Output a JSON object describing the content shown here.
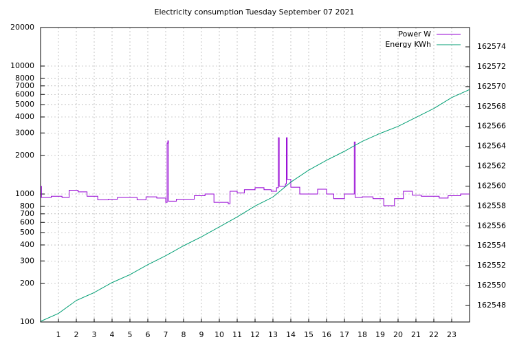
{
  "chart_data": {
    "type": "line",
    "title": "Electricity consumption Tuesday September 07 2021",
    "xlim": [
      0,
      24
    ],
    "xticks": [
      1,
      2,
      3,
      4,
      5,
      6,
      7,
      8,
      9,
      10,
      11,
      12,
      13,
      14,
      15,
      16,
      17,
      18,
      19,
      20,
      21,
      22,
      23
    ],
    "ylim": [
      100,
      20000
    ],
    "yscale": "log",
    "yticks": [
      100,
      200,
      300,
      400,
      500,
      600,
      700,
      800,
      1000,
      2000,
      3000,
      4000,
      5000,
      6000,
      7000,
      8000,
      10000,
      20000
    ],
    "y2lim": [
      162546.34,
      162575.94
    ],
    "y2ticks": [
      162548,
      162550,
      162552,
      162554,
      162556,
      162558,
      162560,
      162562,
      162564,
      162566,
      162568,
      162570,
      162572,
      162574
    ],
    "grid": true,
    "legend": "top-right",
    "series": [
      {
        "name": "Power W",
        "color": "#9400d3",
        "style": "steps",
        "x": [
          0,
          0.05,
          0.6,
          1.2,
          1.6,
          2.1,
          2.6,
          3.2,
          3.8,
          4.3,
          5.4,
          5.9,
          6.5,
          7.0,
          7.08,
          7.12,
          7.15,
          7.2,
          7.6,
          8.6,
          9.2,
          9.7,
          10.5,
          10.6,
          11,
          11.4,
          12,
          12.5,
          12.9,
          13.2,
          13.3,
          13.35,
          13.7,
          13.75,
          13.8,
          14.0,
          14.5,
          15.5,
          16,
          16.4,
          17,
          17.55,
          17.6,
          18,
          18.6,
          19.2,
          19.8,
          20.3,
          20.8,
          21.3,
          22.3,
          22.8,
          23.5
        ],
        "values": [
          1150,
          940,
          960,
          940,
          1070,
          1040,
          960,
          900,
          910,
          940,
          900,
          950,
          930,
          860,
          2500,
          2600,
          880,
          880,
          910,
          970,
          1000,
          860,
          840,
          1050,
          1020,
          1080,
          1120,
          1080,
          1050,
          1120,
          2750,
          1150,
          1200,
          2750,
          1300,
          1130,
          1000,
          1090,
          1000,
          920,
          1000,
          2550,
          940,
          950,
          920,
          810,
          920,
          1050,
          980,
          960,
          930,
          970,
          1000
        ]
      },
      {
        "name": "Energy KWh",
        "color": "#009e73",
        "axis": "y2",
        "x": [
          0,
          1,
          2,
          3,
          4,
          5,
          6,
          7,
          8,
          9,
          10,
          11,
          12,
          13,
          14,
          15,
          16,
          17,
          18,
          19,
          20,
          21,
          22,
          23,
          24
        ],
        "values": [
          162546.4,
          162547.2,
          162548.5,
          162549.3,
          162550.3,
          162551.1,
          162552.1,
          162553.0,
          162554.0,
          162554.9,
          162555.9,
          162556.9,
          162558.0,
          162558.9,
          162560.4,
          162561.6,
          162562.6,
          162563.5,
          162564.5,
          162565.3,
          162566.0,
          162566.9,
          162567.8,
          162568.9,
          162569.7
        ]
      }
    ]
  }
}
